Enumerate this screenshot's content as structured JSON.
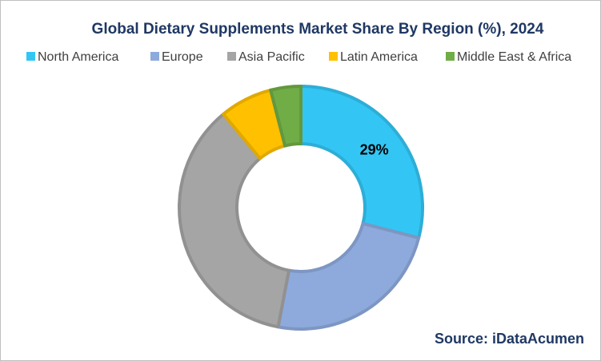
{
  "chart_data": {
    "type": "donut",
    "title": "Global Dietary Supplements Market Share By Region (%), 2024",
    "categories": [
      "North America",
      "Europe",
      "Asia Pacific",
      "Latin America",
      "Middle East & Africa"
    ],
    "values": [
      29,
      24,
      36,
      7,
      4
    ],
    "value_labels": [
      "29%",
      null,
      null,
      null,
      null
    ],
    "colors": [
      "#33c6f4",
      "#8eaadc",
      "#a5a5a5",
      "#ffc000",
      "#70ad47"
    ],
    "source": "Source: iDataAcumen"
  }
}
